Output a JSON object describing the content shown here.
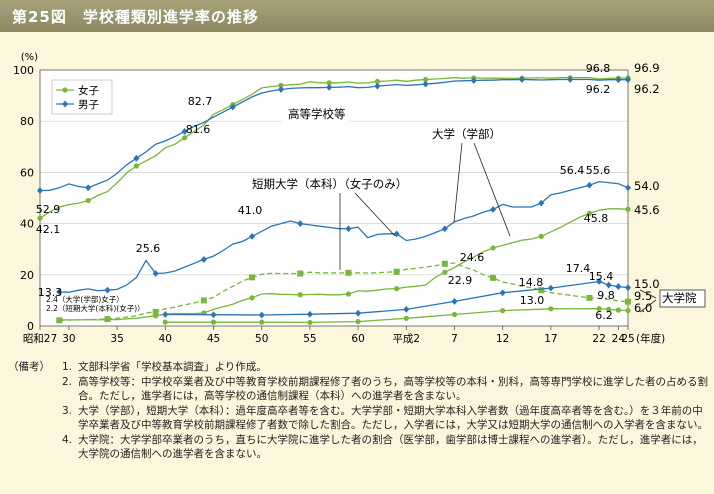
{
  "title": "第25図　学校種類別進学率の推移",
  "chart_data": {
    "type": "line",
    "ylabel": "(%)",
    "xlabel": "(年度)",
    "ylim": [
      0,
      100
    ],
    "yticks": [
      0,
      20,
      40,
      60,
      80,
      100
    ],
    "xticks": [
      "昭和27",
      "30",
      "35",
      "40",
      "45",
      "50",
      "55",
      "60",
      "平成2",
      "7",
      "12",
      "17",
      "22",
      "24",
      "25"
    ],
    "legend": [
      "女子",
      "男子"
    ],
    "colors": {
      "female": "#7ab63a",
      "male": "#2a74b8"
    },
    "series": [
      {
        "group": "高等学校等",
        "name": "女子",
        "line": "solid",
        "marker": "circle",
        "x": [
          1952,
          1953,
          1954,
          1955,
          1956,
          1957,
          1958,
          1959,
          1960,
          1961,
          1962,
          1963,
          1964,
          1965,
          1966,
          1967,
          1968,
          1969,
          1970,
          1971,
          1972,
          1973,
          1974,
          1975,
          1976,
          1977,
          1978,
          1979,
          1980,
          1981,
          1982,
          1983,
          1984,
          1985,
          1986,
          1987,
          1988,
          1989,
          1990,
          1991,
          1992,
          1993,
          1994,
          1995,
          1996,
          1997,
          1998,
          1999,
          2000,
          2001,
          2002,
          2003,
          2004,
          2005,
          2006,
          2007,
          2008,
          2009,
          2010,
          2011,
          2012,
          2013
        ],
        "y": [
          42.1,
          44.5,
          46.5,
          47.4,
          48,
          49,
          51,
          52.5,
          55.9,
          59.8,
          62.5,
          64.5,
          66.5,
          69.6,
          71,
          73.5,
          76,
          78.5,
          82.7,
          84.5,
          86.5,
          88.5,
          90.5,
          93.0,
          93.5,
          94,
          94.2,
          94.5,
          95.4,
          95,
          95,
          95,
          95.3,
          94.9,
          95,
          95.5,
          95.7,
          96,
          95.6,
          96,
          96.3,
          96.5,
          96.7,
          97.0,
          96.8,
          96.9,
          96.8,
          96.8,
          96.8,
          96.7,
          96.8,
          96.9,
          96.9,
          96.8,
          97,
          97,
          97,
          97,
          96.5,
          96.7,
          96.8,
          96.9
        ]
      },
      {
        "group": "高等学校等",
        "name": "男子",
        "line": "solid",
        "marker": "diamond",
        "x": [
          1952,
          1953,
          1954,
          1955,
          1956,
          1957,
          1958,
          1959,
          1960,
          1961,
          1962,
          1963,
          1964,
          1965,
          1966,
          1967,
          1968,
          1969,
          1970,
          1971,
          1972,
          1973,
          1974,
          1975,
          1976,
          1977,
          1978,
          1979,
          1980,
          1981,
          1982,
          1983,
          1984,
          1985,
          1986,
          1987,
          1988,
          1989,
          1990,
          1991,
          1992,
          1993,
          1994,
          1995,
          1996,
          1997,
          1998,
          1999,
          2000,
          2001,
          2002,
          2003,
          2004,
          2005,
          2006,
          2007,
          2008,
          2009,
          2010,
          2011,
          2012,
          2013
        ],
        "y": [
          52.9,
          53,
          54,
          55.5,
          54.5,
          54,
          55.5,
          57,
          59.6,
          63,
          65.5,
          68,
          71,
          72.3,
          74,
          76,
          78,
          79.5,
          81.6,
          83.5,
          85.5,
          87.5,
          89.5,
          91.0,
          91.8,
          92.4,
          92.8,
          93,
          93.1,
          93.1,
          93.2,
          93.3,
          93.5,
          93.1,
          93.2,
          93.7,
          94,
          94.3,
          94.0,
          94.2,
          94.5,
          94.8,
          95.2,
          95.7,
          95.8,
          95.9,
          96,
          96,
          96.2,
          96.2,
          96.3,
          96.2,
          96.1,
          96.2,
          96.3,
          96.3,
          96.3,
          96.3,
          96.0,
          96.2,
          96.2,
          96.2
        ]
      },
      {
        "group": "大学（学部）",
        "name": "男子",
        "line": "solid",
        "marker": "diamond",
        "x": [
          1954,
          1955,
          1956,
          1957,
          1958,
          1959,
          1960,
          1961,
          1962,
          1963,
          1964,
          1965,
          1966,
          1967,
          1968,
          1969,
          1970,
          1971,
          1972,
          1973,
          1974,
          1975,
          1976,
          1977,
          1978,
          1979,
          1980,
          1981,
          1982,
          1983,
          1984,
          1985,
          1986,
          1987,
          1988,
          1989,
          1990,
          1991,
          1992,
          1993,
          1994,
          1995,
          1996,
          1997,
          1998,
          1999,
          2000,
          2001,
          2002,
          2003,
          2004,
          2005,
          2006,
          2007,
          2008,
          2009,
          2010,
          2011,
          2012,
          2013
        ],
        "y": [
          13.3,
          13.2,
          14,
          14.5,
          13.8,
          14,
          14.3,
          16,
          19,
          25.6,
          20.5,
          20.7,
          21.5,
          23,
          24.5,
          26,
          27.3,
          29.5,
          32,
          33,
          35,
          37,
          39,
          40,
          41.0,
          40,
          39.5,
          39,
          38.5,
          38,
          38,
          38.6,
          34.5,
          35.8,
          36,
          36,
          33.4,
          34,
          35,
          36.5,
          38,
          40.7,
          42,
          43,
          44.5,
          45.5,
          47.5,
          46.5,
          46.5,
          46.5,
          48,
          51.3,
          52,
          53,
          54,
          55,
          56.4,
          56,
          55.6,
          54.0
        ]
      },
      {
        "group": "大学（学部）",
        "name": "女子",
        "line": "solid",
        "marker": "circle",
        "x": [
          1954,
          1955,
          1956,
          1957,
          1958,
          1959,
          1960,
          1961,
          1962,
          1963,
          1964,
          1965,
          1966,
          1967,
          1968,
          1969,
          1970,
          1971,
          1972,
          1973,
          1974,
          1975,
          1976,
          1977,
          1978,
          1979,
          1980,
          1981,
          1982,
          1983,
          1984,
          1985,
          1986,
          1987,
          1988,
          1989,
          1990,
          1991,
          1992,
          1993,
          1994,
          1995,
          1996,
          1997,
          1998,
          1999,
          2000,
          2001,
          2002,
          2003,
          2004,
          2005,
          2006,
          2007,
          2008,
          2009,
          2010,
          2011,
          2012,
          2013
        ],
        "y": [
          2.4,
          2.4,
          2.4,
          2.5,
          2.4,
          2.5,
          2.5,
          2.8,
          3,
          3.5,
          4,
          4.6,
          4.9,
          4.8,
          4.8,
          5.1,
          6.5,
          7.5,
          8.5,
          10,
          11,
          12.5,
          12.6,
          12.4,
          12.3,
          12.2,
          12.3,
          12.4,
          12.2,
          12.2,
          12.5,
          13.7,
          13.6,
          14,
          14.5,
          14.6,
          15.2,
          15.5,
          16,
          19,
          21,
          22.9,
          25,
          27,
          29,
          30.5,
          31.5,
          32.5,
          33.5,
          34,
          35,
          36.8,
          38.5,
          40.6,
          42.5,
          44,
          45.2,
          45.8,
          45.8,
          45.6
        ]
      },
      {
        "group": "短期大学（本科）（女子のみ）",
        "name": "女子",
        "line": "dashed",
        "marker": "square",
        "x": [
          1954,
          1955,
          1956,
          1957,
          1958,
          1959,
          1960,
          1961,
          1962,
          1963,
          1964,
          1965,
          1966,
          1967,
          1968,
          1969,
          1970,
          1971,
          1972,
          1973,
          1974,
          1975,
          1976,
          1977,
          1978,
          1979,
          1980,
          1981,
          1982,
          1983,
          1984,
          1985,
          1986,
          1987,
          1988,
          1989,
          1990,
          1991,
          1992,
          1993,
          1994,
          1995,
          1996,
          1997,
          1998,
          1999,
          2000,
          2001,
          2002,
          2003,
          2004,
          2005,
          2006,
          2007,
          2008,
          2009,
          2010,
          2011,
          2012,
          2013
        ],
        "y": [
          2.2,
          2.3,
          2.4,
          2.5,
          2.6,
          2.7,
          3,
          3.5,
          4,
          5.1,
          5.5,
          6.7,
          7.3,
          8.3,
          9,
          10,
          11.2,
          13.5,
          15.5,
          17.5,
          19,
          20.2,
          20.6,
          20.5,
          20.5,
          20.5,
          21,
          20.8,
          20.8,
          20.7,
          20.8,
          20.8,
          20.7,
          20.8,
          21,
          21.2,
          22.2,
          22.5,
          23,
          23.5,
          24.3,
          24.6,
          23,
          21.8,
          20,
          18.8,
          17.2,
          16.5,
          15.5,
          15,
          14,
          13,
          12.5,
          12,
          11.5,
          11,
          10.8,
          10.4,
          9.8,
          9.5
        ]
      },
      {
        "group": "大学院",
        "name": "男子",
        "line": "solid",
        "marker": "diamond",
        "x": [
          1965,
          1970,
          1975,
          1980,
          1985,
          1990,
          1995,
          2000,
          2005,
          2010,
          2011,
          2012,
          2013
        ],
        "y": [
          4.5,
          4.4,
          4.3,
          4.6,
          5.0,
          6.5,
          9.6,
          13.0,
          14.8,
          17.4,
          16.0,
          15.4,
          15.0
        ]
      },
      {
        "group": "大学院",
        "name": "女子",
        "line": "solid",
        "marker": "circle",
        "x": [
          1965,
          1970,
          1975,
          1980,
          1985,
          1990,
          1995,
          2000,
          2005,
          2010,
          2011,
          2012,
          2013
        ],
        "y": [
          1.5,
          1.5,
          1.5,
          1.4,
          1.7,
          3.0,
          4.5,
          6.0,
          6.7,
          6.8,
          6.5,
          6.2,
          6.0
        ]
      }
    ],
    "end_labels": [
      "96.9",
      "96.2",
      "54.0",
      "45.6",
      "15.0",
      "9.5",
      "6.0"
    ],
    "annotations": [
      {
        "text": "52.9"
      },
      {
        "text": "42.1"
      },
      {
        "text": "82.7"
      },
      {
        "text": "81.6"
      },
      {
        "text": "96.8"
      },
      {
        "text": "96.2"
      },
      {
        "text": "25.6"
      },
      {
        "text": "41.0"
      },
      {
        "text": "13.3"
      },
      {
        "text": "24.6"
      },
      {
        "text": "22.9"
      },
      {
        "text": "56.4"
      },
      {
        "text": "55.6"
      },
      {
        "text": "45.8"
      },
      {
        "text": "17.4"
      },
      {
        "text": "15.4"
      },
      {
        "text": "14.8"
      },
      {
        "text": "13.0"
      },
      {
        "text": "9.8"
      },
      {
        "text": "6.2"
      },
      {
        "text": "2.4（大学(学部)女子）"
      },
      {
        "text": "2.2（短期大学(本科)(女子)）"
      }
    ],
    "group_labels": [
      "高等学校等",
      "大学（学部）",
      "短期大学（本科）（女子のみ）",
      "大学院"
    ]
  },
  "notes": {
    "head": "（備考）",
    "items": [
      {
        "num": "1.",
        "text": "文部科学省「学校基本調査」より作成。"
      },
      {
        "num": "2.",
        "text": "高等学校等：中学校卒業者及び中等教育学校前期課程修了者のうち，高等学校等の本科・別科，高等専門学校に進学した者の占める割合。ただし，進学者には，高等学校の通信制課程（本科）への進学者を含まない。"
      },
      {
        "num": "3.",
        "text": "大学（学部），短期大学（本科）：過年度高卒者等を含む。大学学部・短期大学本科入学者数（過年度高卒者等を含む。）を３年前の中学卒業者及び中等教育学校前期課程修了者数で除した割合。ただし，入学者には，大学又は短期大学の通信制への入学者を含まない。"
      },
      {
        "num": "4.",
        "text": "大学院：大学学部卒業者のうち，直ちに大学院に進学した者の割合（医学部，歯学部は博士課程への進学者）。ただし，進学者には，大学院の通信制への進学者を含まない。"
      }
    ]
  }
}
